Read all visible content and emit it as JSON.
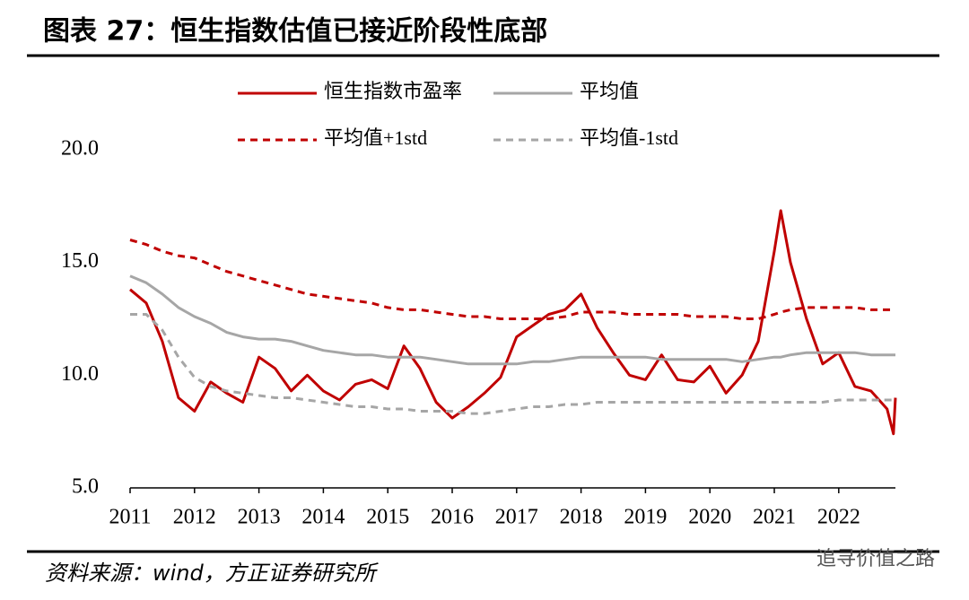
{
  "chart_data": {
    "type": "line",
    "title": "图表 27：恒生指数估值已接近阶段性底部",
    "source": "资料来源：wind，方正证券研究所",
    "watermark": "追寻价值之路",
    "x": [
      2011,
      2011.25,
      2011.5,
      2011.75,
      2012,
      2012.25,
      2012.5,
      2012.75,
      2013,
      2013.25,
      2013.5,
      2013.75,
      2014,
      2014.25,
      2014.5,
      2014.75,
      2015,
      2015.25,
      2015.5,
      2015.75,
      2016,
      2016.25,
      2016.5,
      2016.75,
      2017,
      2017.25,
      2017.5,
      2017.75,
      2018,
      2018.25,
      2018.5,
      2018.75,
      2019,
      2019.25,
      2019.5,
      2019.75,
      2020,
      2020.25,
      2020.5,
      2020.75,
      2021,
      2021.1,
      2021.25,
      2021.5,
      2021.75,
      2022,
      2022.25,
      2022.5,
      2022.75,
      2022.85,
      2022.88
    ],
    "series": [
      {
        "name": "恒生指数市盈率",
        "color": "#c00000",
        "dashed": false,
        "width": 3,
        "values": [
          13.8,
          13.2,
          11.5,
          9.0,
          8.4,
          9.7,
          9.2,
          8.8,
          10.8,
          10.3,
          9.3,
          10.0,
          9.3,
          8.9,
          9.6,
          9.8,
          9.4,
          11.3,
          10.3,
          8.8,
          8.1,
          8.6,
          9.2,
          9.9,
          11.7,
          12.2,
          12.7,
          12.9,
          13.6,
          12.1,
          11.0,
          10.0,
          9.8,
          10.9,
          9.8,
          9.7,
          10.4,
          9.2,
          10.0,
          11.5,
          15.5,
          17.3,
          15.0,
          12.5,
          10.5,
          11.0,
          9.5,
          9.3,
          8.5,
          7.4,
          9.0
        ]
      },
      {
        "name": "平均值",
        "color": "#a6a6a6",
        "dashed": false,
        "width": 3,
        "values": [
          14.4,
          14.1,
          13.6,
          13.0,
          12.6,
          12.3,
          11.9,
          11.7,
          11.6,
          11.6,
          11.5,
          11.3,
          11.1,
          11.0,
          10.9,
          10.9,
          10.8,
          10.8,
          10.8,
          10.7,
          10.6,
          10.5,
          10.5,
          10.5,
          10.5,
          10.6,
          10.6,
          10.7,
          10.8,
          10.8,
          10.8,
          10.8,
          10.8,
          10.7,
          10.7,
          10.7,
          10.7,
          10.7,
          10.6,
          10.7,
          10.8,
          10.8,
          10.9,
          11.0,
          11.0,
          11.0,
          11.0,
          10.9,
          10.9,
          10.9,
          10.9
        ]
      },
      {
        "name": "平均值+1std",
        "color": "#c00000",
        "dashed": true,
        "width": 3,
        "values": [
          16.0,
          15.8,
          15.5,
          15.3,
          15.2,
          14.9,
          14.6,
          14.4,
          14.2,
          14.0,
          13.8,
          13.6,
          13.5,
          13.4,
          13.3,
          13.2,
          13.0,
          12.9,
          12.9,
          12.8,
          12.7,
          12.6,
          12.6,
          12.5,
          12.5,
          12.5,
          12.5,
          12.6,
          12.8,
          12.8,
          12.8,
          12.7,
          12.7,
          12.7,
          12.7,
          12.6,
          12.6,
          12.6,
          12.5,
          12.5,
          12.7,
          12.8,
          12.9,
          13.0,
          13.0,
          13.0,
          13.0,
          12.9,
          12.9,
          12.9,
          12.9
        ]
      },
      {
        "name": "平均值-1std",
        "color": "#a6a6a6",
        "dashed": true,
        "width": 3,
        "values": [
          12.7,
          12.7,
          12.0,
          10.8,
          9.9,
          9.5,
          9.3,
          9.2,
          9.1,
          9.0,
          9.0,
          8.9,
          8.8,
          8.7,
          8.6,
          8.6,
          8.5,
          8.5,
          8.4,
          8.4,
          8.4,
          8.3,
          8.3,
          8.4,
          8.5,
          8.6,
          8.6,
          8.7,
          8.7,
          8.8,
          8.8,
          8.8,
          8.8,
          8.8,
          8.8,
          8.8,
          8.8,
          8.8,
          8.8,
          8.8,
          8.8,
          8.8,
          8.8,
          8.8,
          8.8,
          8.9,
          8.9,
          8.9,
          8.9,
          8.9,
          8.8
        ]
      }
    ],
    "xlim": [
      2011,
      2022.88
    ],
    "xticks": [
      2011,
      2012,
      2013,
      2014,
      2015,
      2016,
      2017,
      2018,
      2019,
      2020,
      2021,
      2022
    ],
    "ylim": [
      5,
      20
    ],
    "yticks": [
      {
        "value": 5,
        "label": "5.0"
      },
      {
        "value": 10,
        "label": "10.0"
      },
      {
        "value": 15,
        "label": "15.0"
      },
      {
        "value": 20,
        "label": "20.0"
      }
    ],
    "grid": false
  }
}
